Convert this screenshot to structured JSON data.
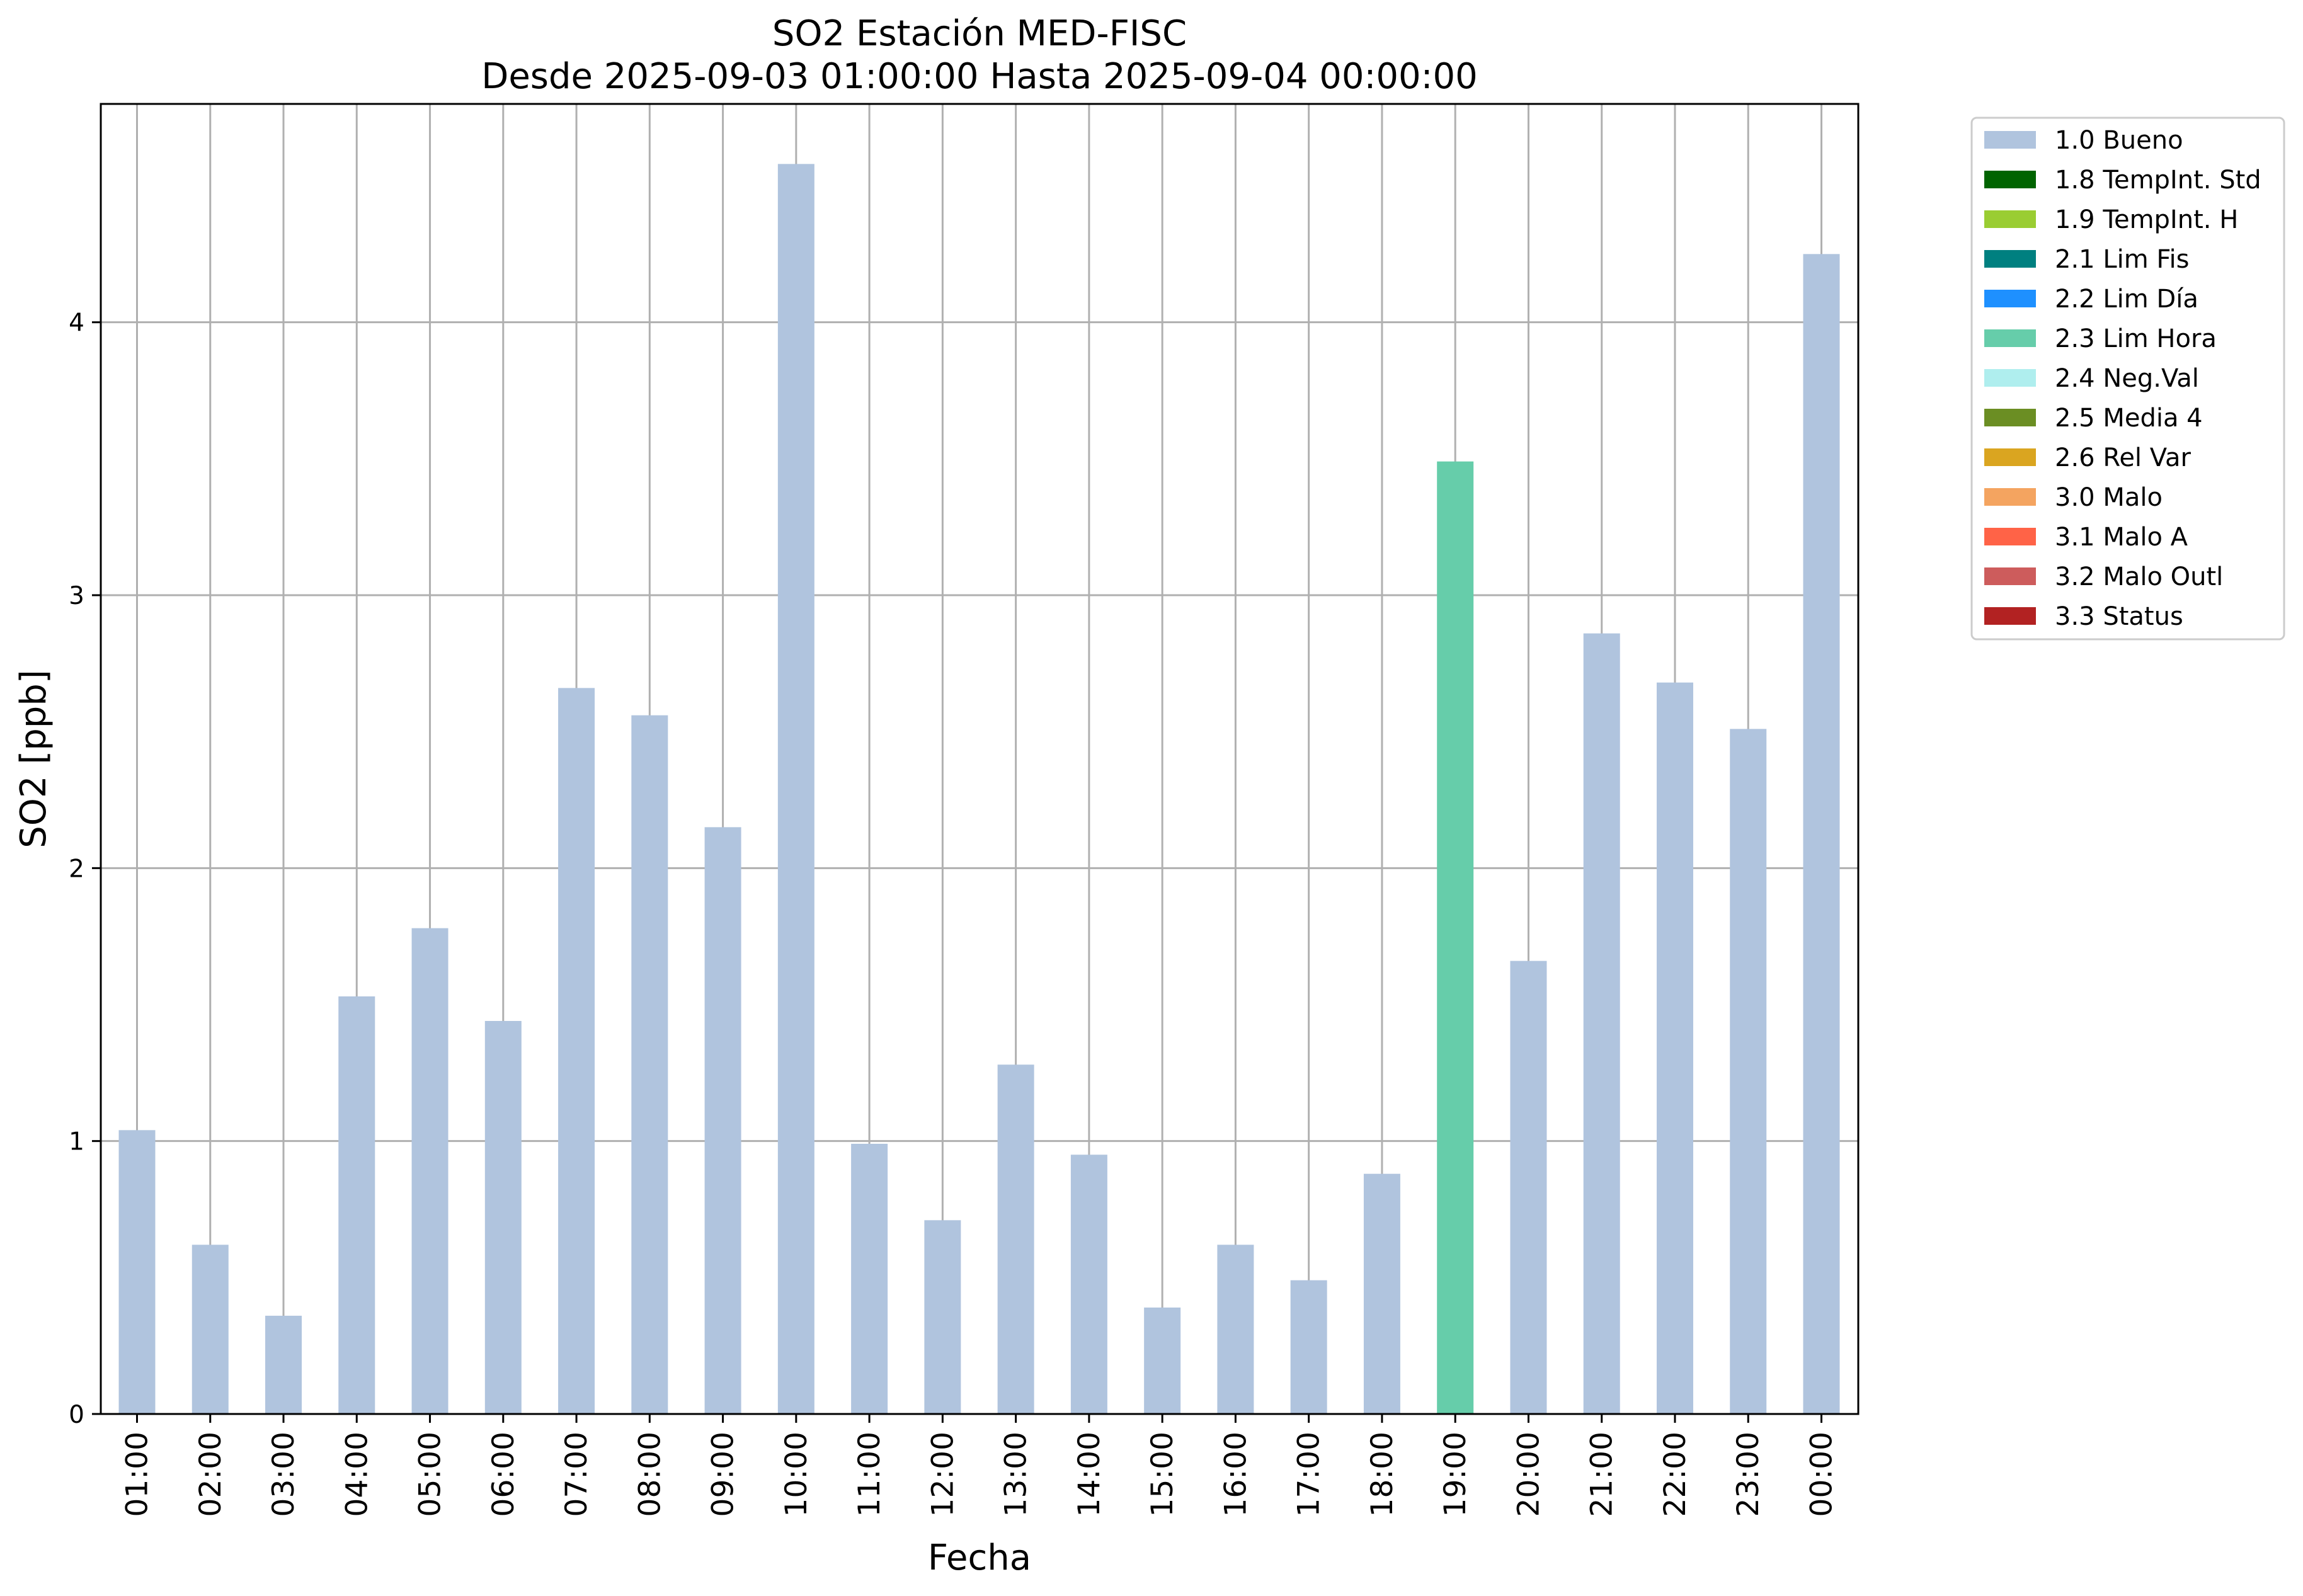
{
  "chart_data": {
    "type": "bar",
    "title": "SO2 Estación MED-FISC",
    "subtitle": "Desde 2025-09-03 01:00:00 Hasta 2025-09-04 00:00:00",
    "xlabel": "Fecha",
    "ylabel": "SO2 [ppb]",
    "ylim": [
      0,
      4.8
    ],
    "yticks": [
      0,
      1,
      2,
      3,
      4
    ],
    "grid": true,
    "legend_position": "outside-top-right",
    "categories": [
      "01:00",
      "02:00",
      "03:00",
      "04:00",
      "05:00",
      "06:00",
      "07:00",
      "08:00",
      "09:00",
      "10:00",
      "11:00",
      "12:00",
      "13:00",
      "14:00",
      "15:00",
      "16:00",
      "17:00",
      "18:00",
      "19:00",
      "20:00",
      "21:00",
      "22:00",
      "23:00",
      "00:00"
    ],
    "values": [
      1.04,
      0.62,
      0.36,
      1.53,
      1.78,
      1.44,
      2.66,
      2.56,
      2.15,
      4.58,
      0.99,
      0.71,
      1.28,
      0.95,
      0.39,
      0.62,
      0.49,
      0.88,
      3.49,
      1.66,
      2.86,
      2.68,
      2.51,
      4.25
    ],
    "flags": [
      "1.0 Bueno",
      "1.0 Bueno",
      "1.0 Bueno",
      "1.0 Bueno",
      "1.0 Bueno",
      "1.0 Bueno",
      "1.0 Bueno",
      "1.0 Bueno",
      "1.0 Bueno",
      "1.0 Bueno",
      "1.0 Bueno",
      "1.0 Bueno",
      "1.0 Bueno",
      "1.0 Bueno",
      "1.0 Bueno",
      "1.0 Bueno",
      "1.0 Bueno",
      "1.0 Bueno",
      "2.3 Lim Hora",
      "1.0 Bueno",
      "1.0 Bueno",
      "1.0 Bueno",
      "1.0 Bueno",
      "1.0 Bueno"
    ],
    "legend": [
      {
        "label": "1.0 Bueno",
        "color": "#b0c4de"
      },
      {
        "label": "1.8 TempInt. Std",
        "color": "#006400"
      },
      {
        "label": "1.9 TempInt. H",
        "color": "#9acd32"
      },
      {
        "label": "2.1 Lim Fis",
        "color": "#008080"
      },
      {
        "label": "2.2 Lim Día",
        "color": "#1e90ff"
      },
      {
        "label": "2.3 Lim Hora",
        "color": "#66cdaa"
      },
      {
        "label": "2.4 Neg.Val",
        "color": "#afeeee"
      },
      {
        "label": "2.5 Media 4",
        "color": "#6b8e23"
      },
      {
        "label": "2.6 Rel Var",
        "color": "#daa520"
      },
      {
        "label": "3.0 Malo",
        "color": "#f4a460"
      },
      {
        "label": "3.1 Malo A",
        "color": "#ff6347"
      },
      {
        "label": "3.2 Malo Outl",
        "color": "#cd5c5c"
      },
      {
        "label": "3.3 Status",
        "color": "#b22222"
      }
    ]
  }
}
